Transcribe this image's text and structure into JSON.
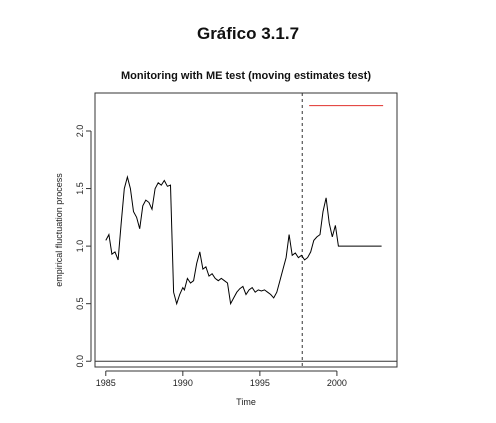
{
  "page_title": "Gráfico 3.1.7",
  "chart_data": {
    "type": "line",
    "title": "Monitoring with ME test (moving estimates test)",
    "xlabel": "Time",
    "ylabel": "empirical fluctuation process",
    "xlim": [
      1984.3,
      2003.9
    ],
    "ylim": [
      -0.05,
      2.33
    ],
    "x_ticks": [
      1985,
      1990,
      1995,
      2000
    ],
    "y_ticks": [
      0.0,
      0.5,
      1.0,
      1.5,
      2.0
    ],
    "grid": false,
    "legend": "none",
    "boundary": {
      "value": 2.22,
      "x_start": 1998.2,
      "x_end": 2003.0,
      "color": "#e0302c"
    },
    "vertical_line": {
      "x": 1997.75,
      "style": "dashed"
    },
    "zero_line": {
      "value": 0.0
    },
    "series": [
      {
        "color": "#000000",
        "x": [
          1985.0,
          1985.2,
          1985.4,
          1985.6,
          1985.8,
          1986.0,
          1986.2,
          1986.4,
          1986.6,
          1986.8,
          1987.0,
          1987.2,
          1987.4,
          1987.6,
          1987.8,
          1988.0,
          1988.2,
          1988.4,
          1988.6,
          1988.8,
          1989.0,
          1989.2,
          1989.4,
          1989.6,
          1989.8,
          1990.0,
          1990.1,
          1990.3,
          1990.5,
          1990.7,
          1990.9,
          1991.1,
          1991.3,
          1991.5,
          1991.7,
          1991.9,
          1992.1,
          1992.3,
          1992.5,
          1992.7,
          1992.9,
          1993.1,
          1993.3,
          1993.5,
          1993.7,
          1993.9,
          1994.1,
          1994.3,
          1994.5,
          1994.7,
          1994.9,
          1995.1,
          1995.3,
          1995.5,
          1995.7,
          1995.9,
          1996.1,
          1996.3,
          1996.5,
          1996.7,
          1996.9,
          1997.1,
          1997.3,
          1997.5,
          1997.7,
          1997.9,
          1998.1,
          1998.3,
          1998.5,
          1998.7,
          1998.9,
          1999.1,
          1999.3,
          1999.5,
          1999.7,
          1999.9,
          2000.1,
          2000.3,
          2000.5,
          2000.7,
          2000.9,
          2001.1,
          2001.3,
          2001.5,
          2001.7,
          2001.9,
          2002.1,
          2002.3,
          2002.5,
          2002.7,
          2002.9
        ],
        "values": [
          1.05,
          1.1,
          0.93,
          0.95,
          0.88,
          1.2,
          1.5,
          1.6,
          1.5,
          1.3,
          1.25,
          1.15,
          1.35,
          1.4,
          1.38,
          1.32,
          1.5,
          1.55,
          1.53,
          1.57,
          1.52,
          1.53,
          0.6,
          0.5,
          0.58,
          0.64,
          0.62,
          0.72,
          0.68,
          0.7,
          0.85,
          0.95,
          0.8,
          0.82,
          0.74,
          0.76,
          0.72,
          0.7,
          0.72,
          0.7,
          0.68,
          0.5,
          0.55,
          0.6,
          0.63,
          0.65,
          0.58,
          0.62,
          0.64,
          0.6,
          0.62,
          0.61,
          0.62,
          0.6,
          0.58,
          0.55,
          0.6,
          0.7,
          0.8,
          0.9,
          1.1,
          0.92,
          0.94,
          0.9,
          0.92,
          0.88,
          0.9,
          0.95,
          1.05,
          1.08,
          1.1,
          1.3,
          1.42,
          1.2,
          1.08,
          1.18,
          1.0,
          1.0,
          1.0,
          1.0,
          1.0,
          1.0,
          1.0,
          1.0,
          1.0,
          1.0,
          1.0,
          1.0,
          1.0,
          1.0,
          1.0
        ]
      }
    ]
  }
}
